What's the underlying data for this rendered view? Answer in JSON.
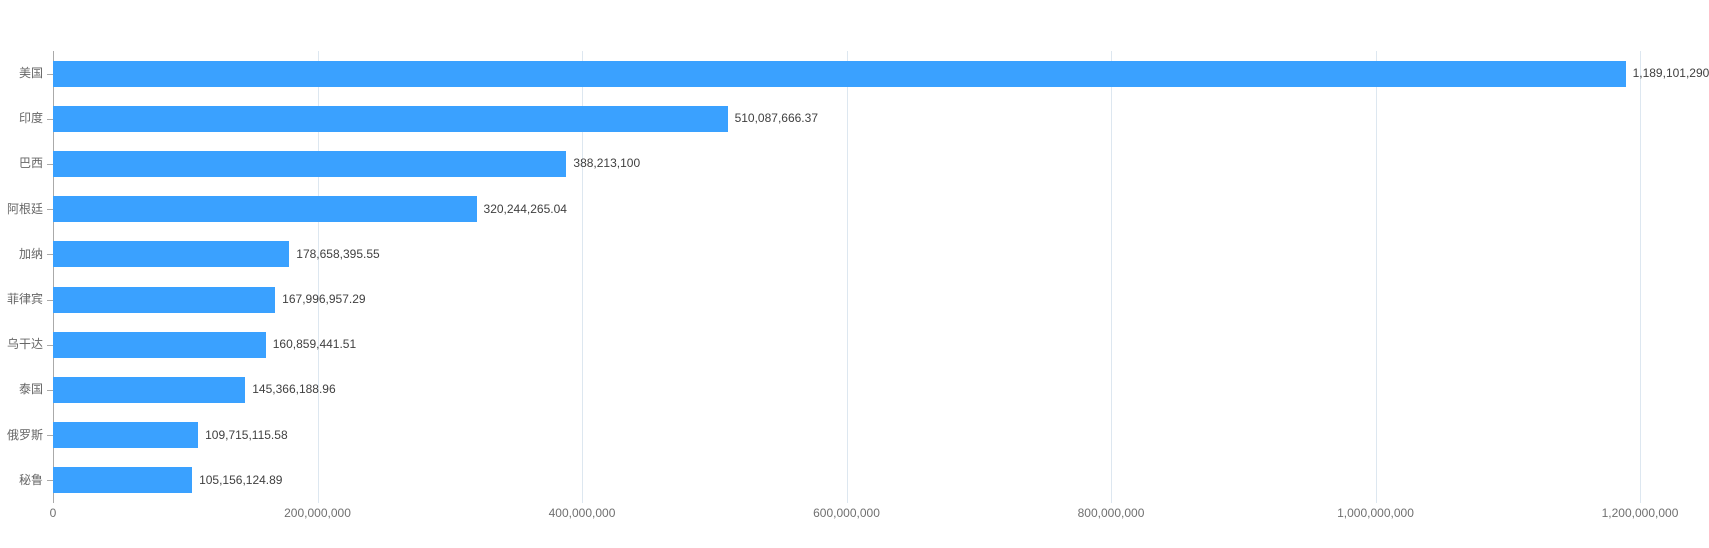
{
  "chart_data": {
    "type": "bar",
    "orientation": "horizontal",
    "title": "",
    "xlabel": "",
    "ylabel": "",
    "categories": [
      "美国",
      "印度",
      "巴西",
      "阿根廷",
      "加纳",
      "菲律宾",
      "乌干达",
      "泰国",
      "俄罗斯",
      "秘鲁"
    ],
    "values": [
      1189101290,
      510087666.37,
      388213100,
      320244265.04,
      178658395.55,
      167996957.29,
      160859441.51,
      145366188.96,
      109715115.58,
      105156124.89
    ],
    "value_labels": [
      "1,189,101,290",
      "510,087,666.37",
      "388,213,100",
      "320,244,265.04",
      "178,658,395.55",
      "167,996,957.29",
      "160,859,441.51",
      "145,366,188.96",
      "109,715,115.58",
      "105,156,124.89"
    ],
    "xlim": [
      0,
      1200000000
    ],
    "x_ticks": [
      0,
      200000000,
      400000000,
      600000000,
      800000000,
      1000000000,
      1200000000
    ],
    "x_tick_labels": [
      "0",
      "200,000,000",
      "400,000,000",
      "600,000,000",
      "800,000,000",
      "1,000,000,000",
      "1,200,000,000"
    ],
    "grid": true,
    "legend": false
  },
  "colors": {
    "bar": "#3aa1ff",
    "gridline": "#dde7f0",
    "axis_line": "#aaaaaa",
    "category_tick": "#aaaaaa",
    "category_label": "#666666",
    "value_label": "#404040",
    "x_tick_label": "#707070",
    "background": "#ffffff"
  }
}
